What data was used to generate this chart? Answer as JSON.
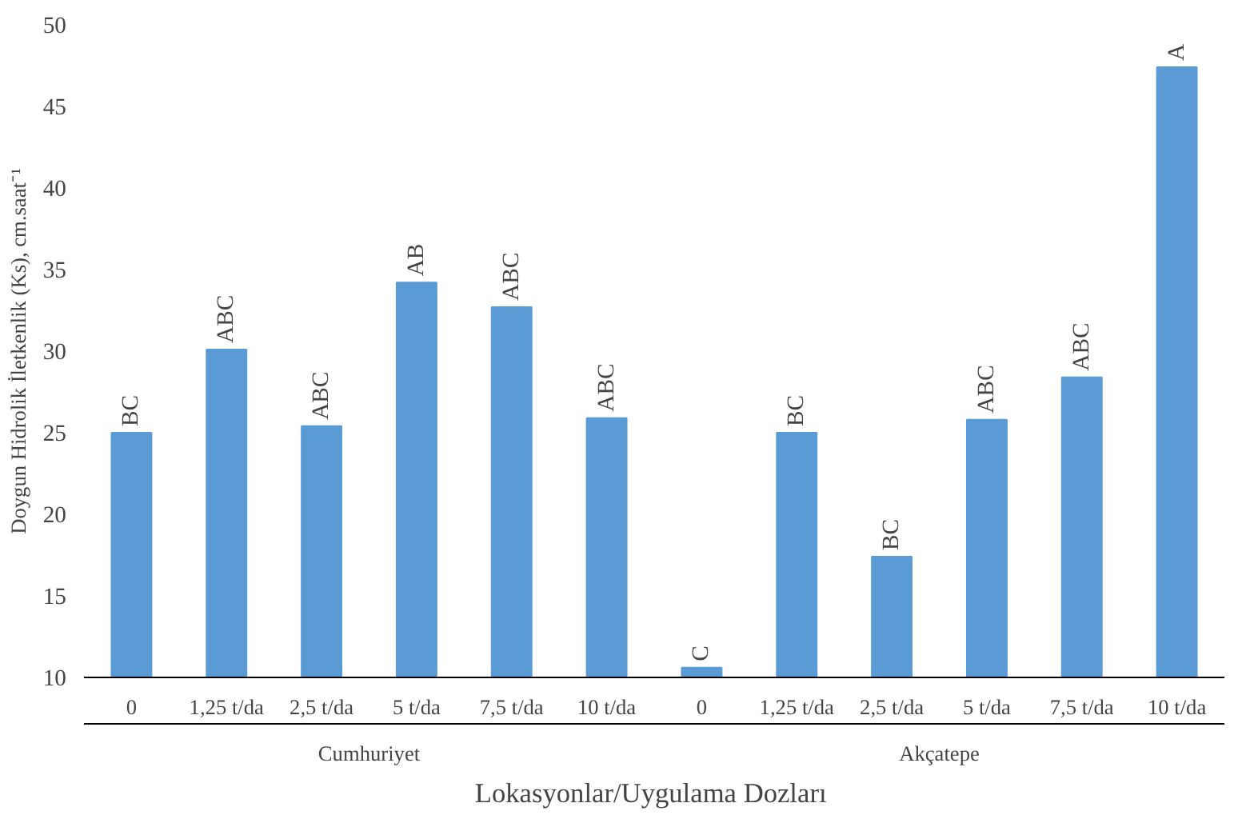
{
  "chart_data": {
    "type": "bar",
    "xlabel": "Lokasyonlar/Uygulama  Dozları",
    "ylabel": "Doygun Hidrolik İletkenlik (Ks), cm.saat⁻¹",
    "categories": [
      "0",
      "1,25 t/da",
      "2,5 t/da",
      "5 t/da",
      "7,5 t/da",
      "10 t/da",
      "0",
      "1,25 t/da",
      "2,5 t/da",
      "5 t/da",
      "7,5 t/da",
      "10 t/da"
    ],
    "values": [
      25.0,
      30.1,
      25.4,
      34.2,
      32.7,
      25.9,
      10.6,
      25.0,
      17.4,
      25.8,
      28.4,
      47.4
    ],
    "value_labels": [
      "BC",
      "ABC",
      "ABC",
      "AB",
      "ABC",
      "ABC",
      "C",
      "BC",
      "BC",
      "ABC",
      "ABC",
      "A"
    ],
    "color": "#5b9bd5",
    "ylim": [
      10,
      50
    ],
    "yticks": [
      10,
      15,
      20,
      25,
      30,
      35,
      40,
      45,
      50
    ],
    "grid": false,
    "annotations": [
      "Cumhuriyet",
      "Akçatepe"
    ]
  }
}
